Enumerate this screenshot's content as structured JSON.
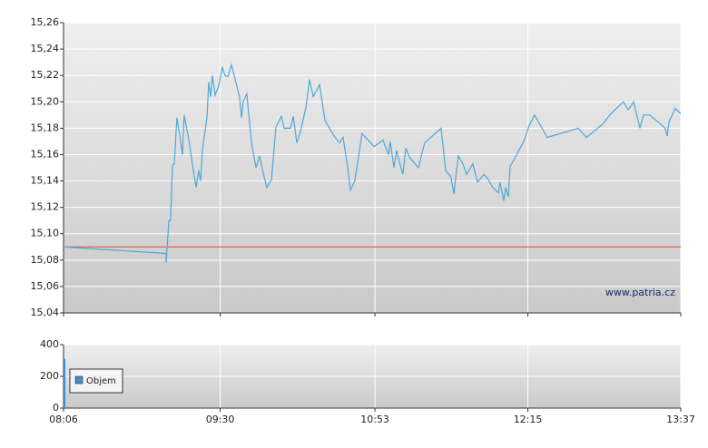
{
  "chart_data": [
    {
      "type": "line",
      "annotation": "www.patria.cz",
      "xlim": [
        486,
        817
      ],
      "ylim": [
        15.04,
        15.26
      ],
      "yticks": [
        {
          "value": 15.04,
          "label": "15,04"
        },
        {
          "value": 15.06,
          "label": "15,06"
        },
        {
          "value": 15.08,
          "label": "15,08"
        },
        {
          "value": 15.1,
          "label": "15,10"
        },
        {
          "value": 15.12,
          "label": "15,12"
        },
        {
          "value": 15.14,
          "label": "15,14"
        },
        {
          "value": 15.16,
          "label": "15,16"
        },
        {
          "value": 15.18,
          "label": "15,18"
        },
        {
          "value": 15.2,
          "label": "15,20"
        },
        {
          "value": 15.22,
          "label": "15,22"
        },
        {
          "value": 15.24,
          "label": "15,24"
        },
        {
          "value": 15.26,
          "label": "15,26"
        }
      ],
      "reference": 15.09,
      "reference_color": "#e04a3a",
      "grid": true,
      "series": [
        {
          "color": "#4ea8d8",
          "x": [
            486,
            541.0,
            541.0,
            542.5,
            543.4,
            544.4,
            545.4,
            546.8,
            548.3,
            549.8,
            550.7,
            553.2,
            555.6,
            557.1,
            558.5,
            559.5,
            560.5,
            562.9,
            563.9,
            564.9,
            565.8,
            567.3,
            569.2,
            571.2,
            572.6,
            574.1,
            576.1,
            578.0,
            580.4,
            581.4,
            582.4,
            584.3,
            586.8,
            589.2,
            591.1,
            592.6,
            595.0,
            597.5,
            599.9,
            602.8,
            604.3,
            607.7,
            609.2,
            611.1,
            613.0,
            616.0,
            617.9,
            619.9,
            623.3,
            626.2,
            631.1,
            634.0,
            635.9,
            638.4,
            639.8,
            642.2,
            646.1,
            652.5,
            657.3,
            660.3,
            661.2,
            663.2,
            664.6,
            666.6,
            668.0,
            669.5,
            671.5,
            676.3,
            679.7,
            688.5,
            690.9,
            693.8,
            695.3,
            697.7,
            700.2,
            702.1,
            705.5,
            708.0,
            711.4,
            713.3,
            716.2,
            719.2,
            720.1,
            722.1,
            723.1,
            724.5,
            725.5,
            727.9,
            732.8,
            735.7,
            738.6,
            745.4,
            762.0,
            766.4,
            775.1,
            779.5,
            786.3,
            788.8,
            791.7,
            795.1,
            797.0,
            800.4,
            808.7,
            809.7,
            810.7,
            814.1,
            817
          ],
          "values": [
            15.09,
            15.085,
            15.078,
            15.11,
            15.11,
            15.152,
            15.153,
            15.188,
            15.175,
            15.16,
            15.19,
            15.171,
            15.148,
            15.135,
            15.148,
            15.14,
            15.164,
            15.188,
            15.215,
            15.204,
            15.22,
            15.205,
            15.212,
            15.226,
            15.22,
            15.219,
            15.228,
            15.217,
            15.204,
            15.188,
            15.2,
            15.206,
            15.169,
            15.15,
            15.159,
            15.149,
            15.135,
            15.141,
            15.181,
            15.189,
            15.18,
            15.18,
            15.189,
            15.169,
            15.177,
            15.196,
            15.217,
            15.204,
            15.213,
            15.186,
            15.174,
            15.169,
            15.173,
            15.15,
            15.133,
            15.14,
            15.176,
            15.166,
            15.171,
            15.16,
            15.17,
            15.15,
            15.163,
            15.152,
            15.145,
            15.165,
            15.158,
            15.15,
            15.169,
            15.18,
            15.148,
            15.143,
            15.13,
            15.159,
            15.153,
            15.145,
            15.153,
            15.139,
            15.145,
            15.142,
            15.135,
            15.131,
            15.139,
            15.125,
            15.135,
            15.128,
            15.151,
            15.157,
            15.17,
            15.182,
            15.19,
            15.173,
            15.18,
            15.173,
            15.183,
            15.191,
            15.2,
            15.194,
            15.2,
            15.18,
            15.19,
            15.19,
            15.18,
            15.174,
            15.185,
            15.195,
            15.191
          ]
        }
      ]
    },
    {
      "type": "bar",
      "xlim": [
        486,
        817
      ],
      "xticks": [
        {
          "value": 486,
          "label": "08:06"
        },
        {
          "value": 570,
          "label": "09:30"
        },
        {
          "value": 653,
          "label": "10:53"
        },
        {
          "value": 735,
          "label": "12:15"
        },
        {
          "value": 817,
          "label": "13:37"
        }
      ],
      "ylim": [
        0,
        400
      ],
      "yticks": [
        0,
        200,
        400
      ],
      "grid": true,
      "series": [
        {
          "name": "Objem",
          "color": "#3d8fcf",
          "x": [
            486
          ],
          "values": [
            310
          ]
        }
      ]
    }
  ]
}
